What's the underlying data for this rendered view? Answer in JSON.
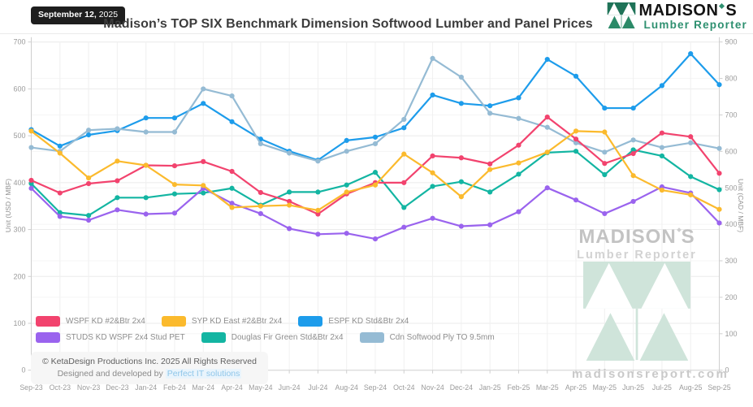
{
  "header": {
    "date_main": "September 12,",
    "date_year": "2025",
    "title": "Madison’s TOP SIX Benchmark Dimension Softwood Lumber and Panel Prices"
  },
  "brand": {
    "name_a": "MADISON",
    "name_b": "S",
    "tagline": "Lumber Reporter",
    "green": "#2e9070",
    "mark_green_top": "#1f7358",
    "mark_green_bottom": "#2b8a68"
  },
  "watermark": {
    "name_a": "MADISON",
    "name_b": "S",
    "subtitle": "Lumber Reporter",
    "url": "madisonsreport.com",
    "mint": "#cfe4da"
  },
  "footer": {
    "copyright": "© KetaDesign Productions Inc. 2025 All Rights Reserved",
    "designed_by": "Designed and developed by",
    "link_label": "Perfect IT solutions"
  },
  "chart_data": {
    "type": "line",
    "title": "Madison’s TOP SIX Benchmark Dimension Softwood Lumber and Panel Prices",
    "grid": true,
    "legend_position": "bottom-left",
    "x": [
      "Sep-23",
      "Oct-23",
      "Nov-23",
      "Dec-23",
      "Jan-24",
      "Feb-24",
      "Mar-24",
      "Apr-24",
      "May-24",
      "Jun-24",
      "Jul-24",
      "Aug-24",
      "Sep-24",
      "Oct-24",
      "Nov-24",
      "Dec-24",
      "Jan-25",
      "Feb-25",
      "Mar-25",
      "Apr-25",
      "May-25",
      "Jun-25",
      "Jul-25",
      "Aug-25",
      "Sep-25"
    ],
    "axes": {
      "left": {
        "label": "Unit (USD / MBF)",
        "min": 0,
        "max": 700,
        "step": 100
      },
      "right": {
        "label": "Unit (CAD / MBF)",
        "min": 0,
        "max": 900,
        "step": 100
      }
    },
    "series": [
      {
        "name": "ESPF KD Std&Btr 2x4",
        "color": "#1d9ceb",
        "values": [
          513,
          478,
          502,
          511,
          538,
          538,
          569,
          530,
          493,
          467,
          448,
          490,
          497,
          517,
          587,
          569,
          564,
          581,
          663,
          627,
          559,
          559,
          607,
          675,
          609
        ]
      },
      {
        "name": "Cdn Softwood Ply TO 9.5mm",
        "color": "#95bbd4",
        "values": [
          475,
          467,
          512,
          515,
          508,
          508,
          600,
          585,
          483,
          463,
          446,
          467,
          483,
          535,
          665,
          625,
          548,
          537,
          518,
          485,
          465,
          491,
          475,
          485,
          473
        ]
      },
      {
        "name": "Douglas Fir Green Std&Btr 2x4",
        "color": "#13b5a2",
        "values": [
          398,
          336,
          330,
          368,
          368,
          376,
          378,
          388,
          352,
          380,
          380,
          395,
          422,
          347,
          392,
          402,
          380,
          418,
          464,
          467,
          417,
          470,
          457,
          413,
          385
        ]
      },
      {
        "name": "STUDS KD WSPF 2x4 Stud PET",
        "color": "#9a63ee",
        "values": [
          388,
          328,
          320,
          342,
          333,
          335,
          388,
          356,
          334,
          302,
          290,
          292,
          280,
          305,
          324,
          307,
          310,
          338,
          389,
          363,
          334,
          360,
          391,
          378,
          314
        ]
      },
      {
        "name": "WSPF KD #2&Btr 2x4",
        "color": "#f2436e",
        "values": [
          405,
          378,
          398,
          404,
          437,
          436,
          445,
          424,
          379,
          360,
          333,
          376,
          400,
          400,
          457,
          453,
          440,
          480,
          540,
          493,
          441,
          462,
          506,
          498,
          420
        ]
      },
      {
        "name": "SYP KD East #2&Btr 2x4",
        "color": "#fbba2d",
        "values": [
          510,
          463,
          410,
          446,
          437,
          396,
          394,
          347,
          350,
          352,
          341,
          380,
          395,
          461,
          421,
          370,
          428,
          442,
          465,
          510,
          508,
          415,
          384,
          374,
          343
        ]
      }
    ],
    "legend_order": [
      [
        4,
        5,
        0
      ],
      [
        3,
        2,
        1
      ]
    ]
  }
}
